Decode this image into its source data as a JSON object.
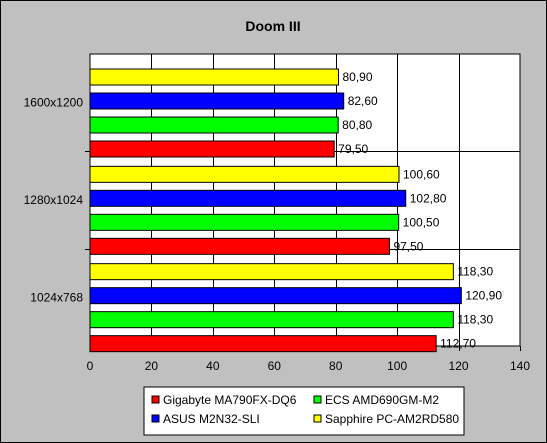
{
  "chart_data": {
    "type": "bar",
    "orientation": "horizontal",
    "title": "Doom III",
    "xlabel": "",
    "ylabel": "",
    "xlim": [
      0,
      140
    ],
    "x_ticks": [
      "0",
      "20",
      "40",
      "60",
      "80",
      "100",
      "120",
      "140"
    ],
    "categories": [
      "1600x1200",
      "1280x1024",
      "1024x768"
    ],
    "series": [
      {
        "name": "Sapphire PC-AM2RD580",
        "color": "#ffff00",
        "values": [
          80.9,
          100.6,
          118.3
        ],
        "labels": [
          "80,90",
          "100,60",
          "118,30"
        ]
      },
      {
        "name": "ASUS M2N32-SLI",
        "color": "#0000ff",
        "values": [
          82.6,
          102.8,
          120.9
        ],
        "labels": [
          "82,60",
          "102,80",
          "120,90"
        ]
      },
      {
        "name": "ECS AMD690GM-M2",
        "color": "#00ff00",
        "values": [
          80.8,
          100.5,
          118.3
        ],
        "labels": [
          "80,80",
          "100,50",
          "118,30"
        ]
      },
      {
        "name": "Gigabyte MA790FX-DQ6",
        "color": "#ff0000",
        "values": [
          79.5,
          97.5,
          112.7
        ],
        "labels": [
          "79,50",
          "97,50",
          "112,70"
        ]
      }
    ],
    "legend_order": [
      "Gigabyte MA790FX-DQ6",
      "ECS AMD690GM-M2",
      "ASUS M2N32-SLI",
      "Sapphire PC-AM2RD580"
    ],
    "legend_position": "bottom",
    "grid": "vertical",
    "plot_background": "#ffffff",
    "chart_background": "#c0c0c0"
  }
}
